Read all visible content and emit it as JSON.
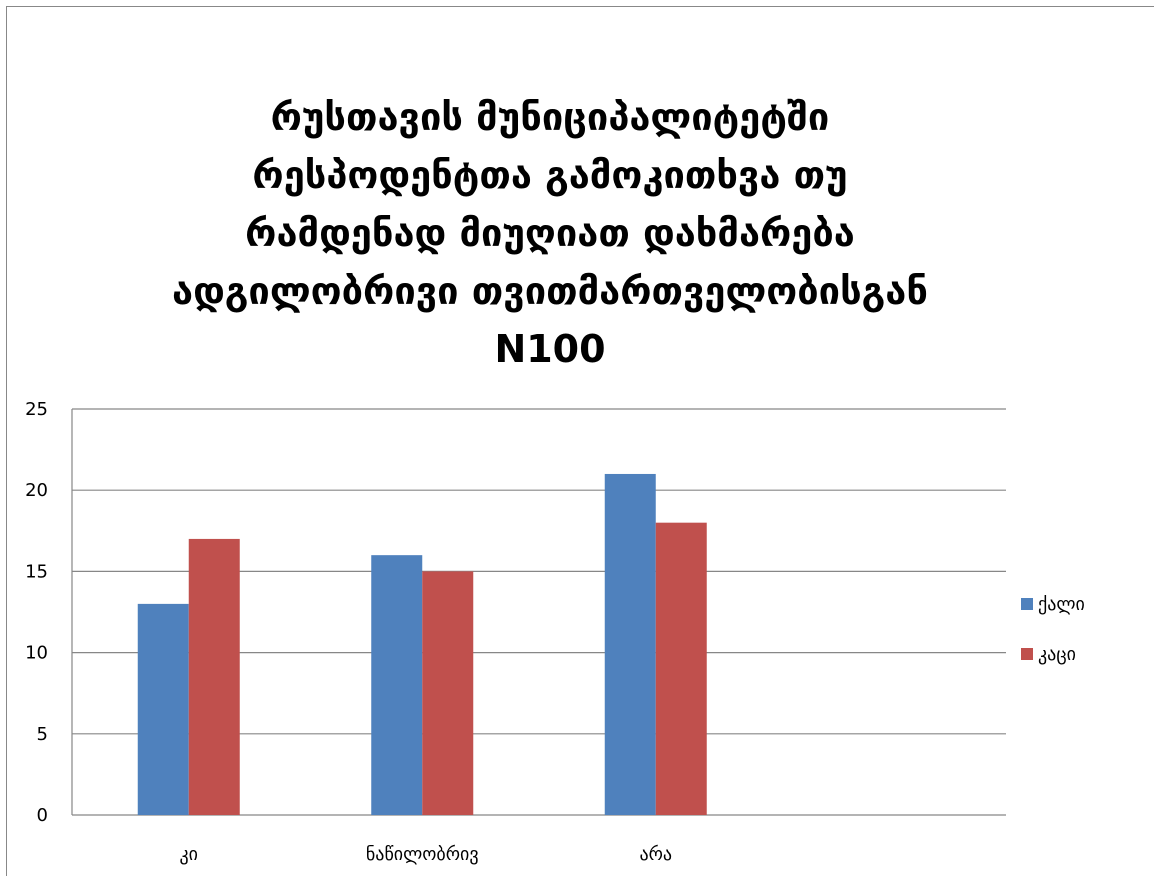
{
  "chart_data": {
    "type": "bar",
    "title": "რუსთავის მუნიციპალიტეტში რესპოდენტთა გამოკითხვა თუ რამდენად მიუღიათ დახმარება ადგილობრივი თვითმართველობისგან N100",
    "title_lines": [
      "რუსთავის მუნიციპალიტეტში",
      "რესპოდენტთა გამოკითხვა თუ",
      "რამდენად მიუღიათ დახმარება",
      "ადგილობრივი თვითმართველობისგან",
      "N100"
    ],
    "categories": [
      "კი",
      "ნაწილობრივ",
      "არა",
      ""
    ],
    "series": [
      {
        "name": "ქალი",
        "values": [
          13,
          16,
          21,
          null
        ],
        "color": "#4F81BD"
      },
      {
        "name": "კაცი",
        "values": [
          17,
          15,
          18,
          null
        ],
        "color": "#C0504D"
      }
    ],
    "ylim": [
      0,
      25
    ],
    "yticks": [
      0,
      5,
      10,
      15,
      20,
      25
    ],
    "grid": true,
    "legend_position": "right"
  }
}
